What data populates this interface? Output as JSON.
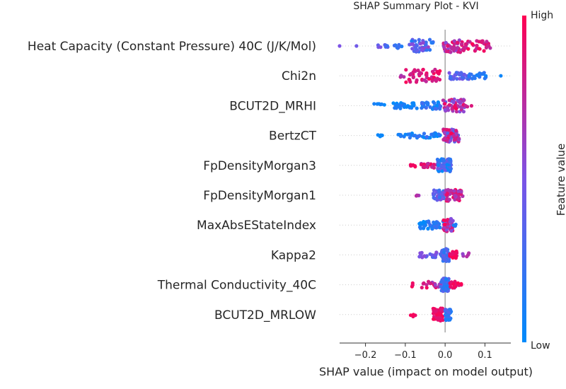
{
  "chart_data": {
    "type": "scatter",
    "subtype": "beeswarm",
    "title": "SHAP Summary Plot - KVI",
    "xlabel": "SHAP value (impact on model output)",
    "ylabel": "",
    "xlim": [
      -0.265,
      0.165
    ],
    "x_ticks": [
      -0.2,
      -0.1,
      0.0,
      0.1
    ],
    "x_tick_labels": [
      "−0.2",
      "−0.1",
      "0.0",
      "0.1"
    ],
    "colorbar": {
      "label": "Feature value",
      "high_label": "High",
      "low_label": "Low",
      "low_color": "#008bfb",
      "high_color": "#ff0052"
    },
    "features": [
      {
        "name": "Heat Capacity (Constant Pressure) 40C (J/K/Mol)",
        "clusters": [
          {
            "x": [
              -0.26,
              -0.27
            ],
            "v": [
              0.5,
              0.5
            ],
            "n": 1,
            "spread": 0
          },
          {
            "x": [
              -0.23,
              -0.215
            ],
            "v": [
              0.45,
              0.45
            ],
            "n": 1,
            "spread": 0
          },
          {
            "x": [
              -0.175,
              -0.14
            ],
            "v": [
              0.15,
              0.55
            ],
            "n": 8,
            "spread": 0.25
          },
          {
            "x": [
              -0.13,
              -0.1
            ],
            "v": [
              0.1,
              0.3
            ],
            "n": 8,
            "spread": 0.35
          },
          {
            "x": [
              -0.09,
              -0.03
            ],
            "v": [
              0.05,
              0.6
            ],
            "n": 45,
            "spread": 1.0
          },
          {
            "x": [
              -0.005,
              0.04
            ],
            "v": [
              0.5,
              1.0
            ],
            "n": 40,
            "spread": 1.0
          },
          {
            "x": [
              0.04,
              0.12
            ],
            "v": [
              0.7,
              1.0
            ],
            "n": 40,
            "spread": 0.8
          }
        ]
      },
      {
        "name": "Chi2n",
        "clusters": [
          {
            "x": [
              -0.12,
              -0.1
            ],
            "v": [
              0.6,
              0.8
            ],
            "n": 4,
            "spread": 0.2
          },
          {
            "x": [
              -0.1,
              -0.01
            ],
            "v": [
              0.75,
              1.0
            ],
            "n": 50,
            "spread": 1.0
          },
          {
            "x": [
              0.01,
              0.06
            ],
            "v": [
              0.2,
              0.5
            ],
            "n": 30,
            "spread": 0.6
          },
          {
            "x": [
              0.06,
              0.11
            ],
            "v": [
              0.05,
              0.25
            ],
            "n": 20,
            "spread": 0.5
          },
          {
            "x": [
              0.14,
              0.14
            ],
            "v": [
              0.05,
              0.05
            ],
            "n": 1,
            "spread": 0
          }
        ]
      },
      {
        "name": "BCUT2D_MRHI",
        "clusters": [
          {
            "x": [
              -0.18,
              -0.15
            ],
            "v": [
              0.0,
              0.1
            ],
            "n": 6,
            "spread": 0.3
          },
          {
            "x": [
              -0.13,
              -0.06
            ],
            "v": [
              0.0,
              0.2
            ],
            "n": 25,
            "spread": 0.45
          },
          {
            "x": [
              -0.06,
              -0.01
            ],
            "v": [
              0.0,
              0.3
            ],
            "n": 30,
            "spread": 0.6
          },
          {
            "x": [
              -0.005,
              0.05
            ],
            "v": [
              0.4,
              1.0
            ],
            "n": 55,
            "spread": 1.0
          },
          {
            "x": [
              0.05,
              0.07
            ],
            "v": [
              0.6,
              0.9
            ],
            "n": 4,
            "spread": 0.2
          }
        ]
      },
      {
        "name": "BertzCT",
        "clusters": [
          {
            "x": [
              -0.17,
              -0.155
            ],
            "v": [
              0.0,
              0.1
            ],
            "n": 5,
            "spread": 0.15
          },
          {
            "x": [
              -0.12,
              -0.09
            ],
            "v": [
              0.0,
              0.15
            ],
            "n": 8,
            "spread": 0.2
          },
          {
            "x": [
              -0.09,
              -0.01
            ],
            "v": [
              0.0,
              0.3
            ],
            "n": 30,
            "spread": 0.4
          },
          {
            "x": [
              -0.005,
              0.035
            ],
            "v": [
              0.3,
              1.0
            ],
            "n": 70,
            "spread": 1.0
          }
        ]
      },
      {
        "name": "FpDensityMorgan3",
        "clusters": [
          {
            "x": [
              -0.1,
              -0.07
            ],
            "v": [
              0.85,
              1.0
            ],
            "n": 7,
            "spread": 0.2
          },
          {
            "x": [
              -0.06,
              -0.02
            ],
            "v": [
              0.7,
              1.0
            ],
            "n": 20,
            "spread": 0.4
          },
          {
            "x": [
              -0.02,
              0.015
            ],
            "v": [
              0.0,
              0.5
            ],
            "n": 80,
            "spread": 1.0
          }
        ]
      },
      {
        "name": "FpDensityMorgan1",
        "clusters": [
          {
            "x": [
              -0.075,
              -0.065
            ],
            "v": [
              0.6,
              0.8
            ],
            "n": 3,
            "spread": 0.15
          },
          {
            "x": [
              -0.03,
              0.0
            ],
            "v": [
              0.2,
              0.6
            ],
            "n": 40,
            "spread": 0.8
          },
          {
            "x": [
              0.0,
              0.045
            ],
            "v": [
              0.6,
              1.0
            ],
            "n": 45,
            "spread": 0.9
          }
        ]
      },
      {
        "name": "MaxAbsEStateIndex",
        "clusters": [
          {
            "x": [
              -0.065,
              -0.005
            ],
            "v": [
              0.0,
              0.25
            ],
            "n": 45,
            "spread": 0.6
          },
          {
            "x": [
              -0.005,
              0.02
            ],
            "v": [
              0.5,
              1.0
            ],
            "n": 40,
            "spread": 1.0
          },
          {
            "x": [
              0.02,
              0.035
            ],
            "v": [
              0.1,
              0.2
            ],
            "n": 3,
            "spread": 0.15
          }
        ]
      },
      {
        "name": "Kappa2",
        "clusters": [
          {
            "x": [
              -0.065,
              -0.01
            ],
            "v": [
              0.3,
              0.55
            ],
            "n": 20,
            "spread": 0.4
          },
          {
            "x": [
              -0.01,
              0.01
            ],
            "v": [
              0.1,
              0.4
            ],
            "n": 50,
            "spread": 1.0
          },
          {
            "x": [
              0.01,
              0.03
            ],
            "v": [
              0.85,
              1.0
            ],
            "n": 20,
            "spread": 0.6
          },
          {
            "x": [
              0.035,
              0.06
            ],
            "v": [
              0.55,
              0.75
            ],
            "n": 5,
            "spread": 0.3
          }
        ]
      },
      {
        "name": "Thermal Conductivity_40C",
        "clusters": [
          {
            "x": [
              -0.09,
              -0.08
            ],
            "v": [
              0.9,
              1.0
            ],
            "n": 3,
            "spread": 0.3
          },
          {
            "x": [
              -0.06,
              -0.01
            ],
            "v": [
              0.6,
              1.0
            ],
            "n": 20,
            "spread": 0.5
          },
          {
            "x": [
              -0.01,
              0.01
            ],
            "v": [
              0.1,
              0.4
            ],
            "n": 70,
            "spread": 1.0
          },
          {
            "x": [
              0.01,
              0.045
            ],
            "v": [
              0.8,
              1.0
            ],
            "n": 18,
            "spread": 0.5
          }
        ]
      },
      {
        "name": "BCUT2D_MRLOW",
        "clusters": [
          {
            "x": [
              -0.09,
              -0.07
            ],
            "v": [
              0.9,
              1.0
            ],
            "n": 5,
            "spread": 0.3
          },
          {
            "x": [
              -0.03,
              -0.005
            ],
            "v": [
              0.85,
              1.0
            ],
            "n": 45,
            "spread": 1.0
          },
          {
            "x": [
              0.0,
              0.015
            ],
            "v": [
              0.05,
              0.4
            ],
            "n": 40,
            "spread": 0.9
          }
        ]
      }
    ]
  }
}
